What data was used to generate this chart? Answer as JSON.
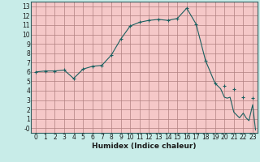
{
  "title": "",
  "xlabel": "Humidex (Indice chaleur)",
  "ylabel": "",
  "outer_bg": "#c8ece8",
  "plot_bg": "#f5c8c8",
  "grid_color": "#b08080",
  "line_color": "#1a6060",
  "marker_color": "#1a6060",
  "xlim": [
    -0.5,
    23.5
  ],
  "ylim": [
    -0.5,
    13.5
  ],
  "yticks": [
    0,
    1,
    2,
    3,
    4,
    5,
    6,
    7,
    8,
    9,
    10,
    11,
    12,
    13
  ],
  "xticks": [
    0,
    1,
    2,
    3,
    4,
    5,
    6,
    7,
    8,
    9,
    10,
    11,
    12,
    13,
    14,
    15,
    16,
    17,
    18,
    19,
    20,
    21,
    22,
    23
  ],
  "x": [
    0,
    1,
    2,
    3,
    4,
    5,
    6,
    7,
    8,
    9,
    10,
    11,
    12,
    13,
    14,
    15,
    16,
    17,
    18,
    19,
    19.3,
    19.6,
    20,
    20.3,
    20.6,
    21,
    21.3,
    21.6,
    22,
    22.3,
    22.6,
    23,
    23.3
  ],
  "y": [
    6.0,
    6.1,
    6.1,
    6.2,
    5.3,
    6.3,
    6.6,
    6.7,
    7.8,
    9.5,
    10.9,
    11.3,
    11.5,
    11.6,
    11.5,
    11.7,
    12.8,
    11.1,
    7.2,
    4.8,
    4.5,
    4.2,
    3.3,
    3.2,
    3.3,
    1.7,
    1.4,
    1.1,
    1.6,
    1.1,
    0.8,
    2.5,
    -0.2
  ],
  "marker_x": [
    0,
    1,
    2,
    3,
    4,
    5,
    6,
    7,
    8,
    9,
    10,
    11,
    12,
    13,
    14,
    15,
    16,
    17,
    18,
    19,
    20,
    21,
    22,
    23
  ]
}
